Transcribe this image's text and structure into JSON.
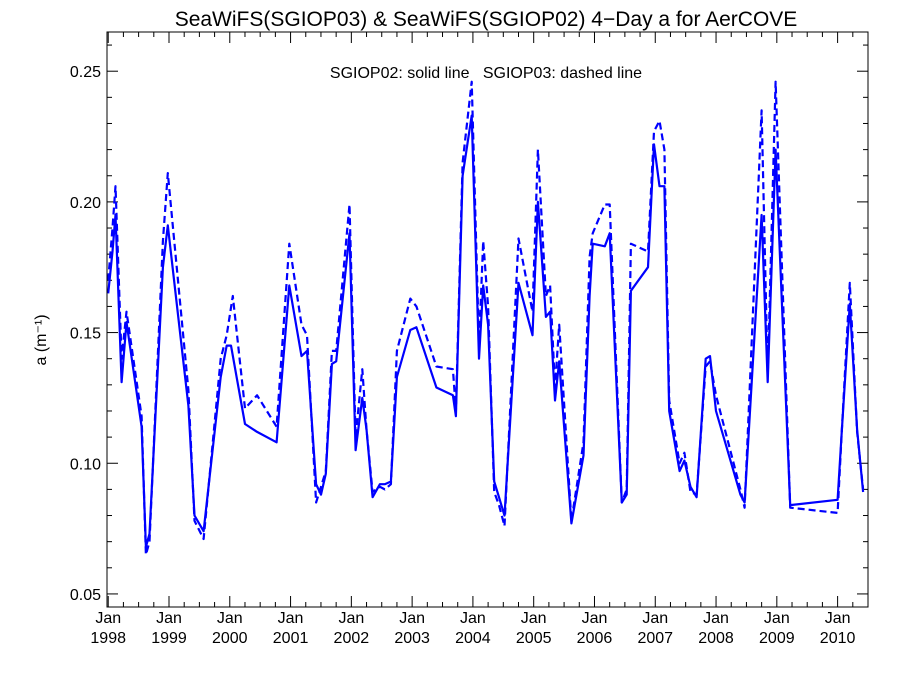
{
  "chart_data": {
    "type": "line",
    "title": "SeaWiFS(SGIOP03) & SeaWiFS(SGIOP02) 4−Day a for AerCOVE",
    "annotation": "SGIOP02: solid line   SGIOP03: dashed line",
    "ylabel": "a (m⁻¹)",
    "xlim": [
      1997.98,
      2010.5
    ],
    "ylim": [
      0.045,
      0.265
    ],
    "yticks": [
      0.05,
      0.1,
      0.15,
      0.2,
      0.25
    ],
    "ytick_labels": [
      "0.05",
      "0.10",
      "0.15",
      "0.20",
      "0.25"
    ],
    "xticks": [
      1998,
      1999,
      2000,
      2001,
      2002,
      2003,
      2004,
      2005,
      2006,
      2007,
      2008,
      2009,
      2010
    ],
    "xtick_months": [
      "Jan",
      "Jan",
      "Jan",
      "Jan",
      "Jan",
      "Jan",
      "Jan",
      "Jan",
      "Jan",
      "Jan",
      "Jan",
      "Jan",
      "Jan"
    ],
    "xtick_years": [
      "1998",
      "1999",
      "2000",
      "2001",
      "2002",
      "2003",
      "2004",
      "2005",
      "2006",
      "2007",
      "2008",
      "2009",
      "2010"
    ],
    "color": "#0000ff",
    "series": [
      {
        "name": "SGIOP02",
        "style": "solid",
        "points": [
          [
            1998.0,
            0.165
          ],
          [
            1998.07,
            0.181
          ],
          [
            1998.12,
            0.195
          ],
          [
            1998.22,
            0.131
          ],
          [
            1998.3,
            0.154
          ],
          [
            1998.55,
            0.114
          ],
          [
            1998.62,
            0.068
          ],
          [
            1998.68,
            0.073
          ],
          [
            1998.9,
            0.175
          ],
          [
            1998.98,
            0.191
          ],
          [
            1999.32,
            0.122
          ],
          [
            1999.42,
            0.08
          ],
          [
            1999.57,
            0.074
          ],
          [
            1999.85,
            0.133
          ],
          [
            1999.95,
            0.145
          ],
          [
            2000.02,
            0.145
          ],
          [
            2000.25,
            0.115
          ],
          [
            2000.45,
            0.112
          ],
          [
            2000.77,
            0.108
          ],
          [
            2000.98,
            0.168
          ],
          [
            2001.18,
            0.141
          ],
          [
            2001.27,
            0.143
          ],
          [
            2001.42,
            0.092
          ],
          [
            2001.5,
            0.088
          ],
          [
            2001.58,
            0.096
          ],
          [
            2001.68,
            0.138
          ],
          [
            2001.75,
            0.139
          ],
          [
            2001.97,
            0.188
          ],
          [
            2002.07,
            0.105
          ],
          [
            2002.18,
            0.125
          ],
          [
            2002.25,
            0.113
          ],
          [
            2002.35,
            0.087
          ],
          [
            2002.47,
            0.092
          ],
          [
            2002.55,
            0.092
          ],
          [
            2002.65,
            0.093
          ],
          [
            2002.75,
            0.133
          ],
          [
            2002.97,
            0.151
          ],
          [
            2003.07,
            0.152
          ],
          [
            2003.4,
            0.129
          ],
          [
            2003.67,
            0.126
          ],
          [
            2003.72,
            0.118
          ],
          [
            2003.83,
            0.21
          ],
          [
            2003.98,
            0.233
          ],
          [
            2004.1,
            0.14
          ],
          [
            2004.17,
            0.168
          ],
          [
            2004.25,
            0.153
          ],
          [
            2004.35,
            0.093
          ],
          [
            2004.43,
            0.087
          ],
          [
            2004.52,
            0.08
          ],
          [
            2004.75,
            0.169
          ],
          [
            2004.98,
            0.149
          ],
          [
            2005.07,
            0.2
          ],
          [
            2005.2,
            0.156
          ],
          [
            2005.27,
            0.158
          ],
          [
            2005.35,
            0.124
          ],
          [
            2005.42,
            0.139
          ],
          [
            2005.62,
            0.077
          ],
          [
            2005.82,
            0.103
          ],
          [
            2005.92,
            0.164
          ],
          [
            2005.97,
            0.184
          ],
          [
            2006.17,
            0.183
          ],
          [
            2006.25,
            0.188
          ],
          [
            2006.45,
            0.085
          ],
          [
            2006.53,
            0.088
          ],
          [
            2006.6,
            0.166
          ],
          [
            2006.88,
            0.175
          ],
          [
            2006.98,
            0.222
          ],
          [
            2007.07,
            0.206
          ],
          [
            2007.15,
            0.206
          ],
          [
            2007.23,
            0.12
          ],
          [
            2007.4,
            0.097
          ],
          [
            2007.48,
            0.101
          ],
          [
            2007.58,
            0.091
          ],
          [
            2007.68,
            0.087
          ],
          [
            2007.83,
            0.14
          ],
          [
            2007.9,
            0.141
          ],
          [
            2008.0,
            0.12
          ],
          [
            2008.4,
            0.088
          ],
          [
            2008.47,
            0.085
          ],
          [
            2008.75,
            0.195
          ],
          [
            2008.85,
            0.131
          ],
          [
            2008.98,
            0.22
          ],
          [
            2009.22,
            0.084
          ],
          [
            2010.0,
            0.086
          ],
          [
            2010.07,
            0.113
          ],
          [
            2010.2,
            0.161
          ],
          [
            2010.32,
            0.113
          ],
          [
            2010.42,
            0.089
          ]
        ]
      },
      {
        "name": "SGIOP03",
        "style": "dashed",
        "points": [
          [
            1998.0,
            0.17
          ],
          [
            1998.07,
            0.19
          ],
          [
            1998.12,
            0.206
          ],
          [
            1998.22,
            0.14
          ],
          [
            1998.3,
            0.158
          ],
          [
            1998.55,
            0.118
          ],
          [
            1998.62,
            0.065
          ],
          [
            1998.68,
            0.07
          ],
          [
            1998.9,
            0.185
          ],
          [
            1998.98,
            0.211
          ],
          [
            1999.32,
            0.128
          ],
          [
            1999.42,
            0.078
          ],
          [
            1999.57,
            0.071
          ],
          [
            1999.85,
            0.14
          ],
          [
            1999.95,
            0.149
          ],
          [
            2000.05,
            0.164
          ],
          [
            2000.25,
            0.121
          ],
          [
            2000.45,
            0.126
          ],
          [
            2000.77,
            0.114
          ],
          [
            2000.98,
            0.184
          ],
          [
            2001.18,
            0.153
          ],
          [
            2001.27,
            0.149
          ],
          [
            2001.42,
            0.085
          ],
          [
            2001.5,
            0.091
          ],
          [
            2001.58,
            0.097
          ],
          [
            2001.68,
            0.143
          ],
          [
            2001.75,
            0.143
          ],
          [
            2001.97,
            0.199
          ],
          [
            2002.07,
            0.11
          ],
          [
            2002.18,
            0.136
          ],
          [
            2002.25,
            0.113
          ],
          [
            2002.35,
            0.089
          ],
          [
            2002.47,
            0.091
          ],
          [
            2002.55,
            0.09
          ],
          [
            2002.65,
            0.092
          ],
          [
            2002.75,
            0.143
          ],
          [
            2002.97,
            0.163
          ],
          [
            2003.07,
            0.16
          ],
          [
            2003.4,
            0.137
          ],
          [
            2003.67,
            0.136
          ],
          [
            2003.72,
            0.12
          ],
          [
            2003.83,
            0.215
          ],
          [
            2003.98,
            0.246
          ],
          [
            2004.1,
            0.145
          ],
          [
            2004.17,
            0.185
          ],
          [
            2004.25,
            0.16
          ],
          [
            2004.35,
            0.089
          ],
          [
            2004.43,
            0.084
          ],
          [
            2004.52,
            0.076
          ],
          [
            2004.75,
            0.186
          ],
          [
            2004.98,
            0.158
          ],
          [
            2005.07,
            0.22
          ],
          [
            2005.2,
            0.164
          ],
          [
            2005.27,
            0.168
          ],
          [
            2005.35,
            0.129
          ],
          [
            2005.42,
            0.153
          ],
          [
            2005.62,
            0.078
          ],
          [
            2005.82,
            0.108
          ],
          [
            2005.92,
            0.179
          ],
          [
            2005.97,
            0.188
          ],
          [
            2006.17,
            0.199
          ],
          [
            2006.25,
            0.199
          ],
          [
            2006.45,
            0.085
          ],
          [
            2006.53,
            0.09
          ],
          [
            2006.6,
            0.184
          ],
          [
            2006.88,
            0.181
          ],
          [
            2006.98,
            0.227
          ],
          [
            2007.07,
            0.231
          ],
          [
            2007.15,
            0.22
          ],
          [
            2007.23,
            0.124
          ],
          [
            2007.4,
            0.1
          ],
          [
            2007.48,
            0.104
          ],
          [
            2007.58,
            0.089
          ],
          [
            2007.68,
            0.088
          ],
          [
            2007.83,
            0.137
          ],
          [
            2007.9,
            0.139
          ],
          [
            2008.0,
            0.126
          ],
          [
            2008.4,
            0.09
          ],
          [
            2008.47,
            0.083
          ],
          [
            2008.75,
            0.235
          ],
          [
            2008.85,
            0.133
          ],
          [
            2008.98,
            0.246
          ],
          [
            2009.22,
            0.083
          ],
          [
            2010.0,
            0.081
          ],
          [
            2010.07,
            0.113
          ],
          [
            2010.2,
            0.169
          ],
          [
            2010.32,
            0.112
          ],
          [
            2010.42,
            0.09
          ]
        ]
      }
    ]
  }
}
